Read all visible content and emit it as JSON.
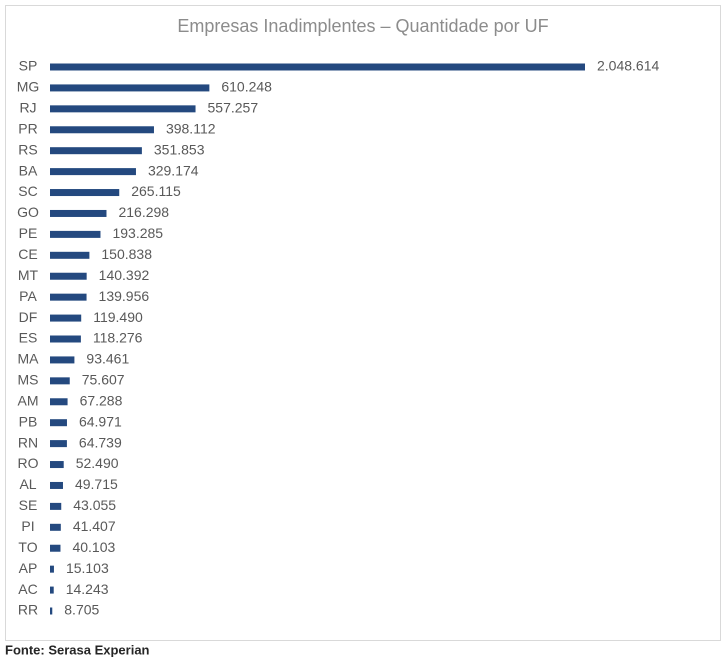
{
  "chart_data": {
    "type": "bar",
    "orientation": "horizontal",
    "title": "Empresas Inadimplentes – Quantidade por UF",
    "categories": [
      "SP",
      "MG",
      "RJ",
      "PR",
      "RS",
      "BA",
      "SC",
      "GO",
      "PE",
      "CE",
      "MT",
      "PA",
      "DF",
      "ES",
      "MA",
      "MS",
      "AM",
      "PB",
      "RN",
      "RO",
      "AL",
      "SE",
      "PI",
      "TO",
      "AP",
      "AC",
      "RR"
    ],
    "values": [
      2048614,
      610248,
      557257,
      398112,
      351853,
      329174,
      265115,
      216298,
      193285,
      150838,
      140392,
      139956,
      119490,
      118276,
      93461,
      75607,
      67288,
      64971,
      64739,
      52490,
      49715,
      43055,
      41407,
      40103,
      15103,
      14243,
      8705
    ],
    "value_labels": [
      "2.048.614",
      "610.248",
      "557.257",
      "398.112",
      "351.853",
      "329.174",
      "265.115",
      "216.298",
      "193.285",
      "150.838",
      "140.392",
      "139.956",
      "119.490",
      "118.276",
      "93.461",
      "75.607",
      "67.288",
      "64.971",
      "64.739",
      "52.490",
      "49.715",
      "43.055",
      "41.407",
      "40.103",
      "15.103",
      "14.243",
      "8.705"
    ],
    "color": "#24497f",
    "source": "Fonte: Serasa Experian"
  }
}
